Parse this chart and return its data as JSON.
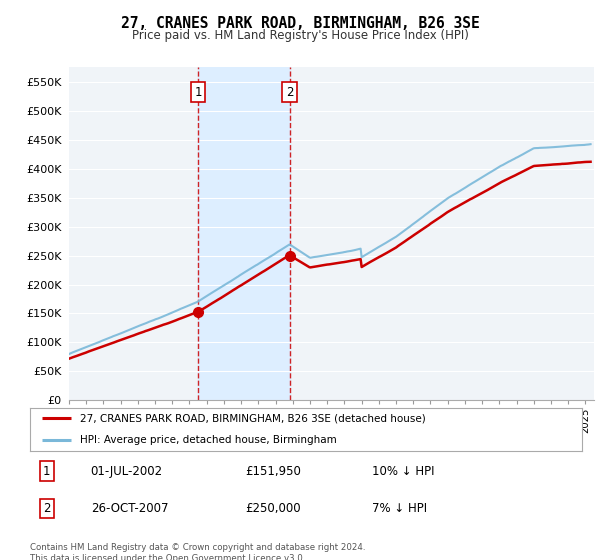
{
  "title": "27, CRANES PARK ROAD, BIRMINGHAM, B26 3SE",
  "subtitle": "Price paid vs. HM Land Registry's House Price Index (HPI)",
  "ylabel_ticks": [
    "£0",
    "£50K",
    "£100K",
    "£150K",
    "£200K",
    "£250K",
    "£300K",
    "£350K",
    "£400K",
    "£450K",
    "£500K",
    "£550K"
  ],
  "ytick_values": [
    0,
    50000,
    100000,
    150000,
    200000,
    250000,
    300000,
    350000,
    400000,
    450000,
    500000,
    550000
  ],
  "ylim": [
    0,
    575000
  ],
  "xlim_start": 1995.0,
  "xlim_end": 2025.5,
  "sale1_date": 2002.5,
  "sale1_price": 151950,
  "sale1_label": "1",
  "sale2_date": 2007.82,
  "sale2_price": 250000,
  "sale2_label": "2",
  "hpi_color": "#7ab8d9",
  "property_color": "#cc0000",
  "shading_color": "#ddeeff",
  "legend_line1": "27, CRANES PARK ROAD, BIRMINGHAM, B26 3SE (detached house)",
  "legend_line2": "HPI: Average price, detached house, Birmingham",
  "table_rows": [
    [
      "1",
      "01-JUL-2002",
      "£151,950",
      "10% ↓ HPI"
    ],
    [
      "2",
      "26-OCT-2007",
      "£250,000",
      "7% ↓ HPI"
    ]
  ],
  "footnote": "Contains HM Land Registry data © Crown copyright and database right 2024.\nThis data is licensed under the Open Government Licence v3.0.",
  "bg_color": "#ffffff",
  "plot_bg_color": "#f0f4f8",
  "grid_color": "#ffffff"
}
